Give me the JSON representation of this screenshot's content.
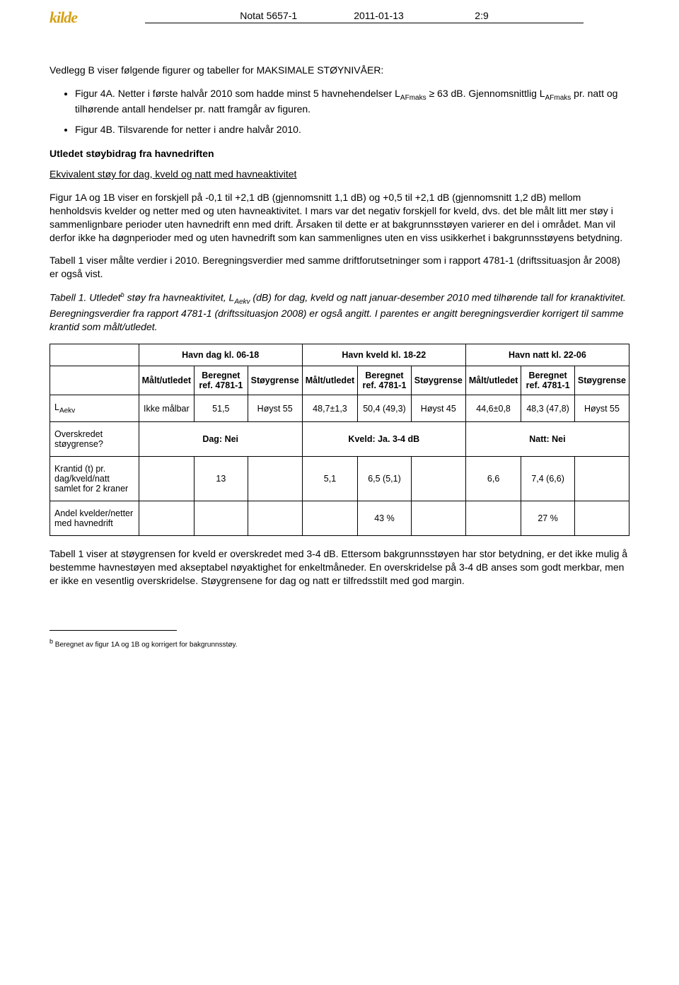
{
  "header": {
    "doc_ref": "Notat  5657-1",
    "date": "2011-01-13",
    "page": "2:9"
  },
  "intro": "Vedlegg B viser følgende figurer og tabeller for MAKSIMALE STØYNIVÅER:",
  "bullets": {
    "b1a": "Figur 4A.  Netter i første halvår 2010 som hadde minst 5 havnehendelser L",
    "b1sub": "AFmaks",
    "b1b": " ≥ 63 dB.  Gjennomsnittlig L",
    "b1sub2": "AFmaks",
    "b1c": " pr. natt og tilhørende antall hendelser pr. natt framgår av figuren.",
    "b2": "Figur 4B.  Tilsvarende for netter i andre halvår 2010."
  },
  "section1_title": "Utledet støybidrag fra havnedriften",
  "section1_sub": "Ekvivalent støy for dag, kveld og natt med havneaktivitet",
  "p1": "Figur 1A og 1B viser en forskjell på -0,1 til +2,1 dB (gjennomsnitt 1,1 dB) og +0,5 til +2,1 dB (gjennomsnitt 1,2 dB) mellom henholdsvis kvelder og netter med og uten havneaktivitet.  I mars var det negativ forskjell for kveld, dvs. det ble målt litt mer støy i sammenlignbare perioder uten havnedrift enn med drift.  Årsaken til dette er at bakgrunnsstøyen varierer en del i området.  Man vil derfor ikke ha døgnperioder med og uten havnedrift som kan sammenlignes uten en viss usikkerhet i bakgrunnsstøyens betydning.",
  "p2": "Tabell 1 viser målte verdier i 2010.  Beregningsverdier med samme driftforutsetninger som i rapport 4781-1 (driftssituasjon år 2008) er også vist.",
  "p3a": "Tabell 1.  Utledet",
  "p3sup": "b",
  "p3b": " støy fra havneaktivitet, L",
  "p3sub": "Aekv",
  "p3c": " (dB) for dag, kveld og natt januar-desember 2010 med tilhørende tall for kranaktivitet.  Beregningsverdier fra rapport 4781-1 (driftssituasjon 2008) er også angitt.  I parentes er angitt beregningsverdier korrigert til samme krantid som målt/utledet.",
  "table": {
    "group_headers": [
      "Havn dag kl. 06-18",
      "Havn kveld kl. 18-22",
      "Havn natt kl. 22-06"
    ],
    "sub_headers": [
      "Målt/utledet",
      "Beregnet ref. 4781-1",
      "Støygrense"
    ],
    "row_laekv_label_a": "L",
    "row_laekv_label_sub": "Aekv",
    "row1": [
      "Ikke målbar",
      "51,5",
      "Høyst 55",
      "48,7±1,3",
      "50,4 (49,3)",
      "Høyst 45",
      "44,6±0,8",
      "48,3 (47,8)",
      "Høyst 55"
    ],
    "row2_label": "Overskredet støygrense?",
    "row2": [
      "Dag: Nei",
      "Kveld: Ja. 3-4 dB",
      "Natt: Nei"
    ],
    "row3_label": "Krantid (t) pr. dag/kveld/natt samlet for 2 kraner",
    "row3": [
      "",
      "13",
      "",
      "5,1",
      "6,5 (5,1)",
      "",
      "6,6",
      "7,4 (6,6)",
      ""
    ],
    "row4_label": "Andel kvelder/netter med havnedrift",
    "row4": [
      "",
      "",
      "",
      "",
      "43 %",
      "",
      "",
      "27 %",
      ""
    ]
  },
  "p4": "Tabell 1 viser at støygrensen for kveld er overskredet med 3-4 dB.  Ettersom bakgrunnsstøyen har stor betydning, er det ikke mulig å bestemme havnestøyen med akseptabel nøyaktighet for enkeltmåneder.  En overskridelse på 3-4 dB anses som godt merkbar, men er ikke en vesentlig overskridelse.  Støygrensene for dag og natt er tilfredsstilt med god margin.",
  "footnote_a": "b",
  "footnote_b": " Beregnet av figur 1A og 1B og korrigert for bakgrunnsstøy."
}
